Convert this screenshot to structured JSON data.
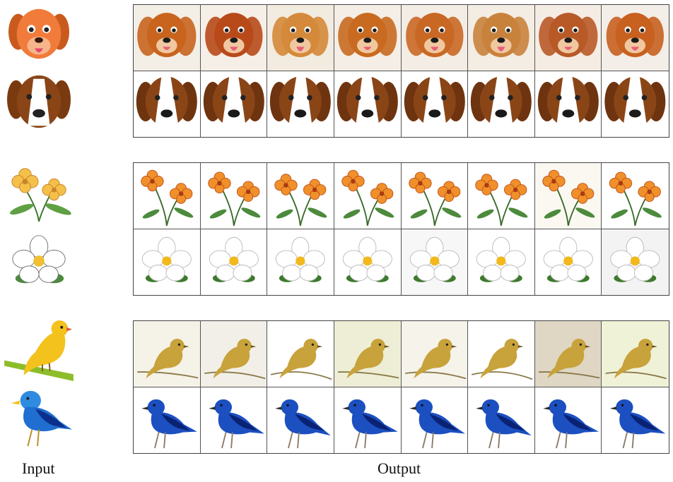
{
  "captions": {
    "input": "Input",
    "output": "Output"
  },
  "groups": [
    {
      "name": "dogs",
      "rows": [
        {
          "subject": "spaniel-dog",
          "tints": [
            "#f3eee6",
            "#f6efe8",
            "#f2ebe0",
            "#f5eee6",
            "#f4ede5",
            "#f3ede4",
            "#f5ece4",
            "#f3eee8"
          ]
        },
        {
          "subject": "beagle-dog",
          "tints": [
            "#ffffff",
            "#ffffff",
            "#ffffff",
            "#ffffff",
            "#ffffff",
            "#ffffff",
            "#ffffff",
            "#ffffff"
          ]
        }
      ]
    },
    {
      "name": "flowers",
      "rows": [
        {
          "subject": "orange-flower",
          "tints": [
            "#ffffff",
            "#ffffff",
            "#ffffff",
            "#ffffff",
            "#ffffff",
            "#ffffff",
            "#fbf8f2",
            "#ffffff"
          ]
        },
        {
          "subject": "white-flower",
          "tints": [
            "#ffffff",
            "#ffffff",
            "#ffffff",
            "#ffffff",
            "#f7f7f7",
            "#ffffff",
            "#ffffff",
            "#f3f3f3"
          ]
        }
      ]
    },
    {
      "name": "birds",
      "rows": [
        {
          "subject": "yellow-bird",
          "tints": [
            "#f5f2e8",
            "#f2efe8",
            "#ffffff",
            "#eeeed6",
            "#f5f3ea",
            "#ffffff",
            "#dfd6c4",
            "#f0f2d8"
          ]
        },
        {
          "subject": "blue-bird",
          "tints": [
            "#ffffff",
            "#ffffff",
            "#ffffff",
            "#ffffff",
            "#ffffff",
            "#ffffff",
            "#ffffff",
            "#ffffff"
          ]
        }
      ]
    }
  ],
  "colors": {
    "spaniel": [
      "#c8641e",
      "#b84a1a",
      "#d48a3a",
      "#c86a20",
      "#c96824",
      "#c9823c",
      "#b85a28",
      "#c86020"
    ],
    "beagle": "#8a4517",
    "flower_orange": "#f0902a",
    "bird_yellow": "#c8a23a",
    "bird_blue": "#1c4fc0"
  }
}
